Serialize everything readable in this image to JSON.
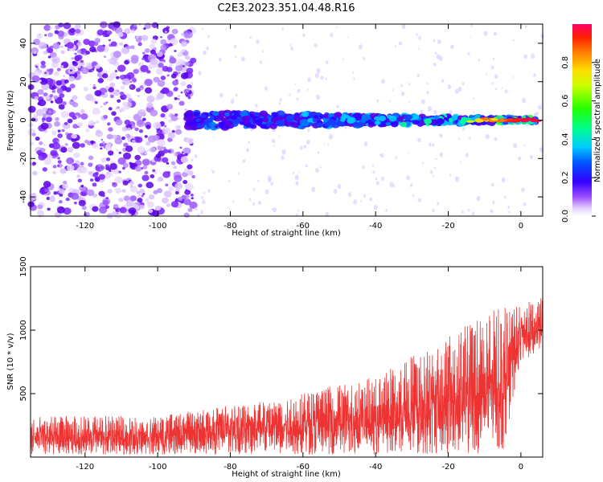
{
  "figure_title": "C2E3.2023.351.04.48.R16",
  "chart_data": [
    {
      "type": "heatmap",
      "title": "C2E3.2023.351.04.48.R16",
      "xlabel": "Height of straight line (km)",
      "ylabel": "Frequency (Hz)",
      "xlim": [
        -135,
        6
      ],
      "ylim": [
        -50,
        50
      ],
      "xticks": [
        -120,
        -100,
        -80,
        -60,
        -40,
        -20,
        0
      ],
      "yticks": [
        -40,
        -20,
        0,
        20,
        40
      ],
      "colorbar": {
        "label": "Normalized spectral amplitude",
        "range": [
          0,
          1
        ],
        "ticks": [
          0.0,
          0.2,
          0.4,
          0.6,
          0.8
        ]
      },
      "description_values": {
        "signal_center_hz": 0,
        "signal_band_width_hz": 8,
        "signal_start_km": -92,
        "signal_end_km": 5,
        "peak_amplitude_near_km": 0,
        "noise_dense_region_km": [
          -135,
          -92
        ]
      }
    },
    {
      "type": "line",
      "title": "",
      "xlabel": "Height of straight line (km)",
      "ylabel": "SNR (10 * v/v)",
      "xlim": [
        -135,
        6
      ],
      "ylim": [
        0,
        1500
      ],
      "xticks": [
        -120,
        -100,
        -80,
        -60,
        -40,
        -20,
        0
      ],
      "yticks": [
        500,
        1000,
        1500
      ],
      "series": [
        {
          "name": "SNR",
          "color": "#ee3333",
          "x": [
            -135,
            -120,
            -100,
            -80,
            -60,
            -40,
            -30,
            -20,
            -10,
            -5,
            0,
            6
          ],
          "lower": [
            20,
            20,
            20,
            20,
            20,
            20,
            20,
            20,
            30,
            40,
            750,
            850
          ],
          "upper": [
            350,
            360,
            350,
            450,
            560,
            700,
            900,
            1050,
            1250,
            1300,
            1250,
            1300
          ],
          "typical": [
            150,
            150,
            160,
            220,
            260,
            300,
            380,
            420,
            550,
            600,
            950,
            1050
          ]
        }
      ]
    }
  ]
}
